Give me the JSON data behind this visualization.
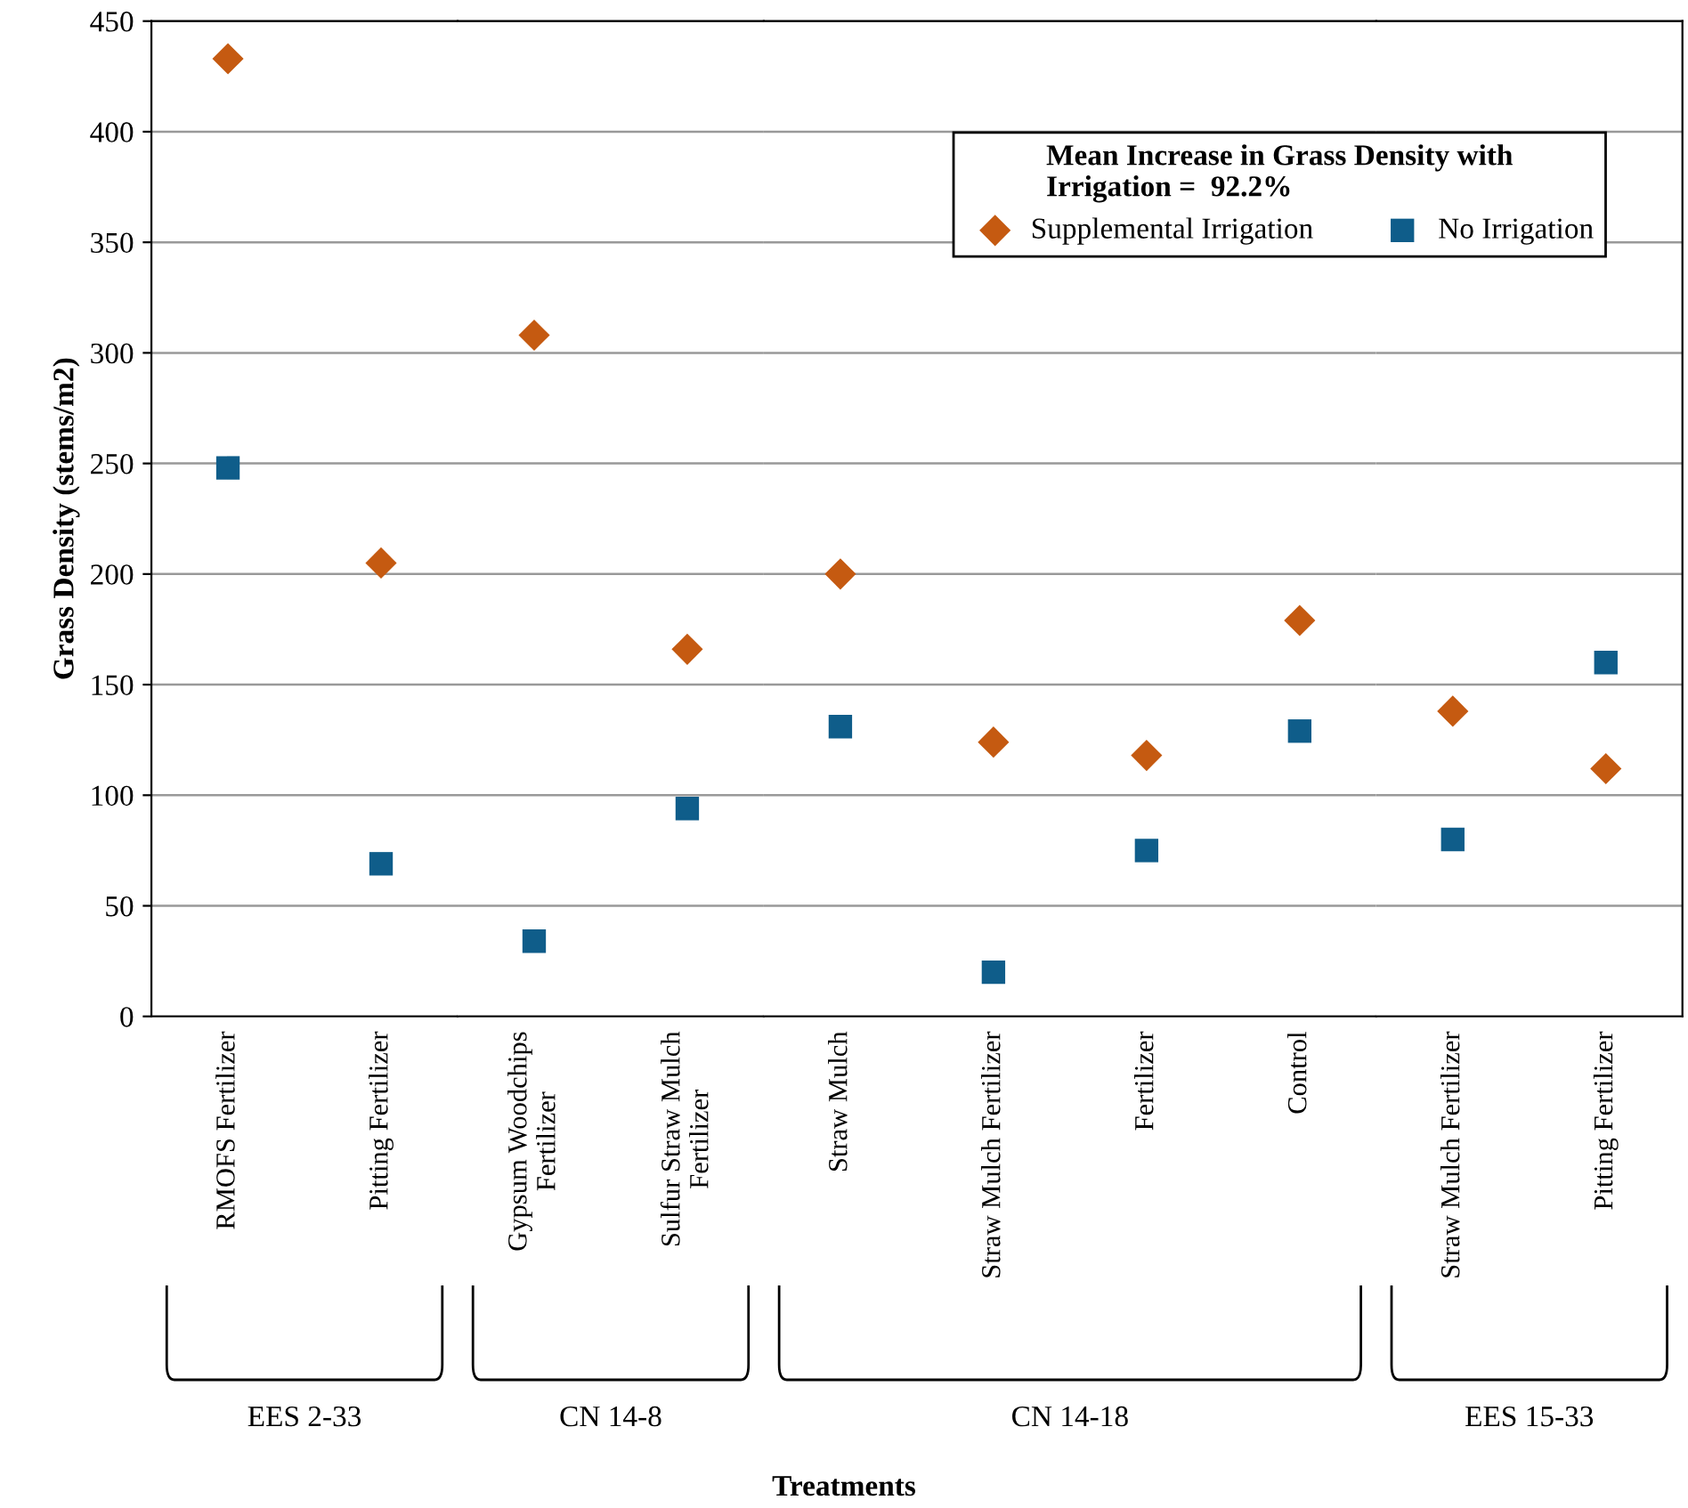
{
  "chart_data": [
    {
      "type": "scatter",
      "ylabel": "Grass Density (stems/m2)",
      "xlabel": "EES 2-33",
      "categories": [
        "RMOFS Fertilizer",
        "Pitting Fertilizer"
      ],
      "series": [
        {
          "color": "#c55a11",
          "marker": "diamond",
          "values": [
            433,
            205
          ]
        },
        {
          "color": "#0f5d8a",
          "marker": "square",
          "values": [
            248,
            69
          ]
        }
      ],
      "annotations": [
        "Treatments"
      ],
      "ylim": [
        0,
        450
      ],
      "yticks": [
        0,
        50,
        100,
        150,
        200,
        250,
        300,
        350,
        400,
        450
      ],
      "grid": "y"
    },
    {
      "type": "scatter",
      "xlabel": "CN 14-8",
      "categories": [
        "Gypsum Woodchips\nFertilizer",
        "Sulfur Straw Mulch\nFertilizer"
      ],
      "series": [
        {
          "color": "#c55a11",
          "marker": "diamond",
          "values": [
            308,
            166
          ]
        },
        {
          "color": "#0f5d8a",
          "marker": "square",
          "values": [
            34,
            94
          ]
        }
      ],
      "ylim": [
        0,
        450
      ],
      "yticks": [
        0,
        50,
        100,
        150,
        200,
        250,
        300,
        350,
        400,
        450
      ],
      "grid": "y",
      "tick_labels": "x"
    },
    {
      "type": "scatter",
      "xlabel": "CN 14-18",
      "legend_title": "Mean Increase in Grass Density with\nIrrigation =  92.2%",
      "legend": "top right",
      "categories": [
        "Straw Mulch",
        "Straw Mulch Fertilizer",
        "Fertilizer",
        "Control"
      ],
      "series": [
        {
          "name": "Supplemental Irrigation",
          "color": "#c55a11",
          "marker": "diamond",
          "values": [
            200,
            124,
            118,
            179
          ]
        },
        {
          "name": "No Irrigation",
          "color": "#0f5d8a",
          "marker": "square",
          "values": [
            131,
            20,
            75,
            129
          ]
        }
      ],
      "ylim": [
        0,
        450
      ],
      "yticks": [
        0,
        50,
        100,
        150,
        200,
        250,
        300,
        350,
        400,
        450
      ],
      "grid": "y",
      "tick_labels": "x"
    },
    {
      "type": "scatter",
      "xlabel": "EES 15-33",
      "categories": [
        "Straw Mulch Fertilizer",
        "Pitting Fertilizer"
      ],
      "series": [
        {
          "color": "#c55a11",
          "marker": "diamond",
          "values": [
            138,
            112
          ]
        },
        {
          "color": "#0f5d8a",
          "marker": "square",
          "values": [
            80,
            160
          ]
        }
      ],
      "ylim": [
        0,
        450
      ],
      "yticks": [
        0,
        50,
        100,
        150,
        200,
        250,
        300,
        350,
        400,
        450
      ],
      "grid": "y",
      "tick_labels": "x"
    }
  ]
}
